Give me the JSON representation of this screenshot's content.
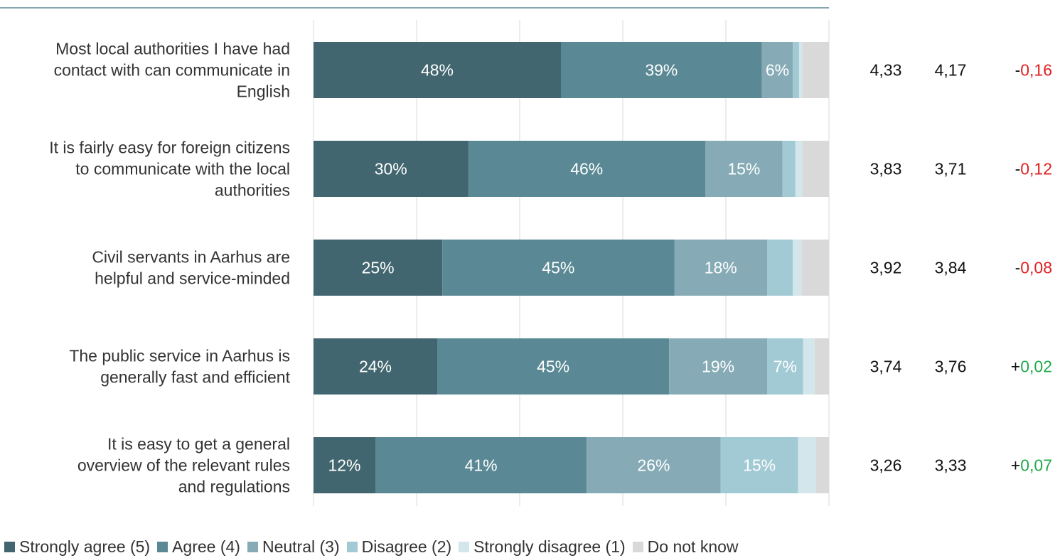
{
  "chart_data": {
    "type": "bar",
    "orientation": "horizontal",
    "stacked": true,
    "grid": true,
    "legend_position": "bottom",
    "xlim": [
      0,
      100
    ],
    "categories": [
      [
        "Most local authorities I have had",
        "contact with can communicate in",
        "English"
      ],
      [
        "It is fairly easy for foreign citizens",
        "to communicate with the local",
        "authorities"
      ],
      [
        "Civil servants in Aarhus are",
        "helpful and service-minded"
      ],
      [
        "The public service in Aarhus is",
        "generally fast and efficient"
      ],
      [
        "It is easy to get a general",
        "overview of the relevant rules",
        "and regulations"
      ]
    ],
    "series": [
      {
        "name": "Strongly agree (5)",
        "color": "#42666f",
        "values": [
          48,
          30,
          25,
          24,
          12
        ],
        "labels": [
          "48%",
          "30%",
          "25%",
          "24%",
          "12%"
        ]
      },
      {
        "name": "Agree (4)",
        "color": "#5a8995",
        "values": [
          39,
          46,
          45,
          45,
          41
        ],
        "labels": [
          "39%",
          "46%",
          "45%",
          "45%",
          "41%"
        ]
      },
      {
        "name": "Neutral (3)",
        "color": "#86abb6",
        "values": [
          6,
          15,
          18,
          19,
          26
        ],
        "labels": [
          "6%",
          "15%",
          "18%",
          "19%",
          "26%"
        ]
      },
      {
        "name": "Disagree (2)",
        "color": "#a2cad5",
        "values": [
          1.2,
          2.5,
          5,
          7,
          15
        ],
        "labels": [
          "",
          "",
          "",
          "7%",
          "15%"
        ]
      },
      {
        "name": "Strongly disagree (1)",
        "color": "#d3e6eb",
        "values": [
          0.6,
          1.3,
          1.7,
          2.2,
          3.5
        ],
        "labels": [
          "",
          "",
          "",
          "",
          ""
        ]
      },
      {
        "name": "Do not know",
        "color": "#d9d9d9",
        "values": [
          5.2,
          5.2,
          5.3,
          2.8,
          2.5
        ],
        "labels": [
          "",
          "",
          "",
          "",
          ""
        ]
      }
    ],
    "columns": [
      [
        "4,33",
        "3,83",
        "3,92",
        "3,74",
        "3,26"
      ],
      [
        "4,17",
        "3,71",
        "3,84",
        "3,76",
        "3,33"
      ]
    ],
    "change": [
      {
        "sign": "-",
        "value": "0,16",
        "color": "#e02020"
      },
      {
        "sign": "-",
        "value": "0,12",
        "color": "#e02020"
      },
      {
        "sign": "-",
        "value": "0,08",
        "color": "#e02020"
      },
      {
        "sign": "+",
        "value": "0,02",
        "color": "#1faa4a"
      },
      {
        "sign": "+",
        "value": "0,07",
        "color": "#1faa4a"
      }
    ],
    "colors": {
      "top_rule": "#5a8995",
      "grid": "#d9d9d9",
      "negative": "#e02020",
      "positive": "#1faa4a"
    }
  }
}
